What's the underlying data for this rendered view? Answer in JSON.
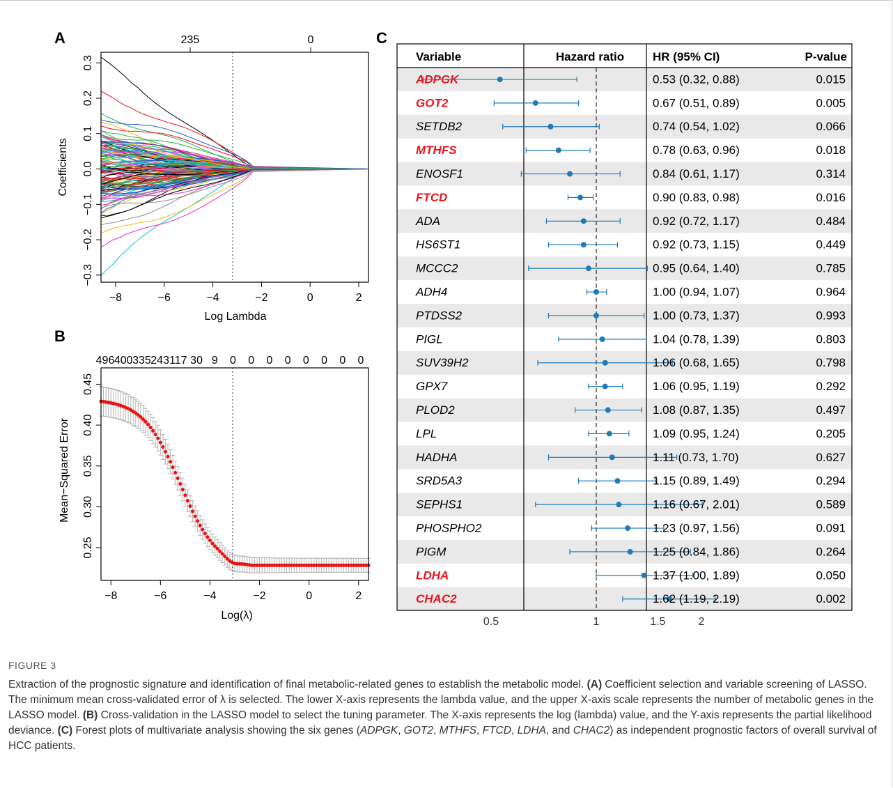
{
  "panels": {
    "a": {
      "label": "A",
      "top_ticks": [
        "235",
        "0"
      ],
      "ylabel": "Coefficients",
      "xlabel": "Log Lambda",
      "yticks": [
        "0.3",
        "0.2",
        "0.1",
        "0.0",
        "−0.1",
        "−0.2",
        "−0.3"
      ],
      "xticks": [
        "−8",
        "−6",
        "−4",
        "−2",
        "0",
        "2"
      ]
    },
    "b": {
      "label": "B",
      "top_ticks": [
        "496",
        "400",
        "335",
        "243",
        "117",
        "30",
        "9",
        "0",
        "0",
        "0",
        "0",
        "0",
        "0",
        "0",
        "0"
      ],
      "ylabel": "Mean−Squared Error",
      "xlabel": "Log(λ)",
      "yticks": [
        "0.45",
        "0.40",
        "0.35",
        "0.30",
        "0.25"
      ],
      "xticks": [
        "−8",
        "−6",
        "−4",
        "−2",
        "0",
        "2"
      ]
    },
    "c": {
      "label": "C",
      "headers": [
        "Variable",
        "Hazard ratio",
        "HR (95% CI)",
        "P-value"
      ],
      "xticks": [
        "0.5",
        "1",
        "1.5",
        "2"
      ]
    }
  },
  "caption": {
    "figure": "FIGURE 3",
    "text": "Extraction of the prognostic signature and identification of final metabolic-related genes to establish the metabolic model. (A) Coefficient selection and variable screening of LASSO. The minimum mean cross-validated error of λ is selected. The lower X-axis represents the lambda value, and the upper X-axis scale represents the number of metabolic genes in the LASSO model. (B) Cross-validation in the LASSO model to select the tuning parameter. The X-axis represents the log (lambda) value, and the Y-axis represents the partial likelihood deviance. (C) Forest plots of multivariate analysis showing the six genes (ADPGK, GOT2, MTHFS, FTCD, LDHA, and CHAC2) as independent prognostic factors of overall survival of HCC patients."
  },
  "colors": {
    "highlight_gene": "#e8141e",
    "forest_point": "#1f7ab8",
    "cv_point": "#e81414",
    "error_bar": "#b4b4b4",
    "row_shade": "#e9e9e9"
  },
  "chart_data": [
    {
      "type": "line",
      "panel": "A",
      "title": "",
      "xlabel": "Log Lambda",
      "ylabel": "Coefficients",
      "xlim": [
        -8.6,
        2.4
      ],
      "ylim": [
        -0.32,
        0.33
      ],
      "top_axis": {
        "ticks_at_x": [
          -4.6,
          0
        ],
        "labels": [
          "235",
          "0"
        ]
      },
      "selected_log_lambda": -3.1,
      "series_note": "hundreds of coefficient paths shrinking to zero near log lambda -2.3"
    },
    {
      "type": "scatter",
      "panel": "B",
      "title": "",
      "xlabel": "Log(λ)",
      "ylabel": "Mean−Squared Error",
      "xlim": [
        -8.4,
        2.4
      ],
      "ylim": [
        0.21,
        0.47
      ],
      "selected_log_lambda": -3.1,
      "top_axis_labels": [
        "496",
        "400",
        "335",
        "243",
        "117",
        "30",
        "9",
        "0",
        "0",
        "0",
        "0",
        "0",
        "0",
        "0",
        "0"
      ],
      "curve": {
        "start": [
          -8.4,
          0.432
        ],
        "min": [
          -3.1,
          0.222
        ],
        "plateau": 0.229
      }
    },
    {
      "type": "table",
      "panel": "C",
      "xlabel": "Hazard ratio",
      "xticks": [
        0.5,
        1,
        1.5,
        2
      ],
      "reference_line": 1,
      "rows": [
        {
          "gene": "ADPGK",
          "hr": 0.53,
          "lo": 0.32,
          "hi": 0.88,
          "ci": "0.53 (0.32, 0.88)",
          "p": "0.015",
          "highlight": true
        },
        {
          "gene": "GOT2",
          "hr": 0.67,
          "lo": 0.51,
          "hi": 0.89,
          "ci": "0.67 (0.51, 0.89)",
          "p": "0.005",
          "highlight": true
        },
        {
          "gene": "SETDB2",
          "hr": 0.74,
          "lo": 0.54,
          "hi": 1.02,
          "ci": "0.74 (0.54, 1.02)",
          "p": "0.066",
          "highlight": false
        },
        {
          "gene": "MTHFS",
          "hr": 0.78,
          "lo": 0.63,
          "hi": 0.96,
          "ci": "0.78 (0.63, 0.96)",
          "p": "0.018",
          "highlight": true
        },
        {
          "gene": "ENOSF1",
          "hr": 0.84,
          "lo": 0.61,
          "hi": 1.17,
          "ci": "0.84 (0.61, 1.17)",
          "p": "0.314",
          "highlight": false
        },
        {
          "gene": "FTCD",
          "hr": 0.9,
          "lo": 0.83,
          "hi": 0.98,
          "ci": "0.90 (0.83, 0.98)",
          "p": "0.016",
          "highlight": true
        },
        {
          "gene": "ADA",
          "hr": 0.92,
          "lo": 0.72,
          "hi": 1.17,
          "ci": "0.92 (0.72, 1.17)",
          "p": "0.484",
          "highlight": false
        },
        {
          "gene": "HS6ST1",
          "hr": 0.92,
          "lo": 0.73,
          "hi": 1.15,
          "ci": "0.92 (0.73, 1.15)",
          "p": "0.449",
          "highlight": false
        },
        {
          "gene": "MCCC2",
          "hr": 0.95,
          "lo": 0.64,
          "hi": 1.4,
          "ci": "0.95 (0.64, 1.40)",
          "p": "0.785",
          "highlight": false
        },
        {
          "gene": "ADH4",
          "hr": 1.0,
          "lo": 0.94,
          "hi": 1.07,
          "ci": "1.00 (0.94, 1.07)",
          "p": "0.964",
          "highlight": false
        },
        {
          "gene": "PTDSS2",
          "hr": 1.0,
          "lo": 0.73,
          "hi": 1.37,
          "ci": "1.00 (0.73, 1.37)",
          "p": "0.993",
          "highlight": false
        },
        {
          "gene": "PIGL",
          "hr": 1.04,
          "lo": 0.78,
          "hi": 1.39,
          "ci": "1.04 (0.78, 1.39)",
          "p": "0.803",
          "highlight": false
        },
        {
          "gene": "SUV39H2",
          "hr": 1.06,
          "lo": 0.68,
          "hi": 1.65,
          "ci": "1.06 (0.68, 1.65)",
          "p": "0.798",
          "highlight": false
        },
        {
          "gene": "GPX7",
          "hr": 1.06,
          "lo": 0.95,
          "hi": 1.19,
          "ci": "1.06 (0.95, 1.19)",
          "p": "0.292",
          "highlight": false
        },
        {
          "gene": "PLOD2",
          "hr": 1.08,
          "lo": 0.87,
          "hi": 1.35,
          "ci": "1.08 (0.87, 1.35)",
          "p": "0.497",
          "highlight": false
        },
        {
          "gene": "LPL",
          "hr": 1.09,
          "lo": 0.95,
          "hi": 1.24,
          "ci": "1.09 (0.95, 1.24)",
          "p": "0.205",
          "highlight": false
        },
        {
          "gene": "HADHA",
          "hr": 1.11,
          "lo": 0.73,
          "hi": 1.7,
          "ci": "1.11 (0.73, 1.70)",
          "p": "0.627",
          "highlight": false
        },
        {
          "gene": "SRD5A3",
          "hr": 1.15,
          "lo": 0.89,
          "hi": 1.49,
          "ci": "1.15 (0.89, 1.49)",
          "p": "0.294",
          "highlight": false
        },
        {
          "gene": "SEPHS1",
          "hr": 1.16,
          "lo": 0.67,
          "hi": 2.01,
          "ci": "1.16 (0.67, 2.01)",
          "p": "0.589",
          "highlight": false
        },
        {
          "gene": "PHOSPHO2",
          "hr": 1.23,
          "lo": 0.97,
          "hi": 1.56,
          "ci": "1.23 (0.97, 1.56)",
          "p": "0.091",
          "highlight": false
        },
        {
          "gene": "PIGM",
          "hr": 1.25,
          "lo": 0.84,
          "hi": 1.86,
          "ci": "1.25 (0.84, 1.86)",
          "p": "0.264",
          "highlight": false
        },
        {
          "gene": "LDHA",
          "hr": 1.37,
          "lo": 1.0,
          "hi": 1.89,
          "ci": "1.37 (1.00, 1.89)",
          "p": "0.050",
          "highlight": true
        },
        {
          "gene": "CHAC2",
          "hr": 1.62,
          "lo": 1.19,
          "hi": 2.19,
          "ci": "1.62 (1.19, 2.19)",
          "p": "0.002",
          "highlight": true
        }
      ]
    }
  ]
}
